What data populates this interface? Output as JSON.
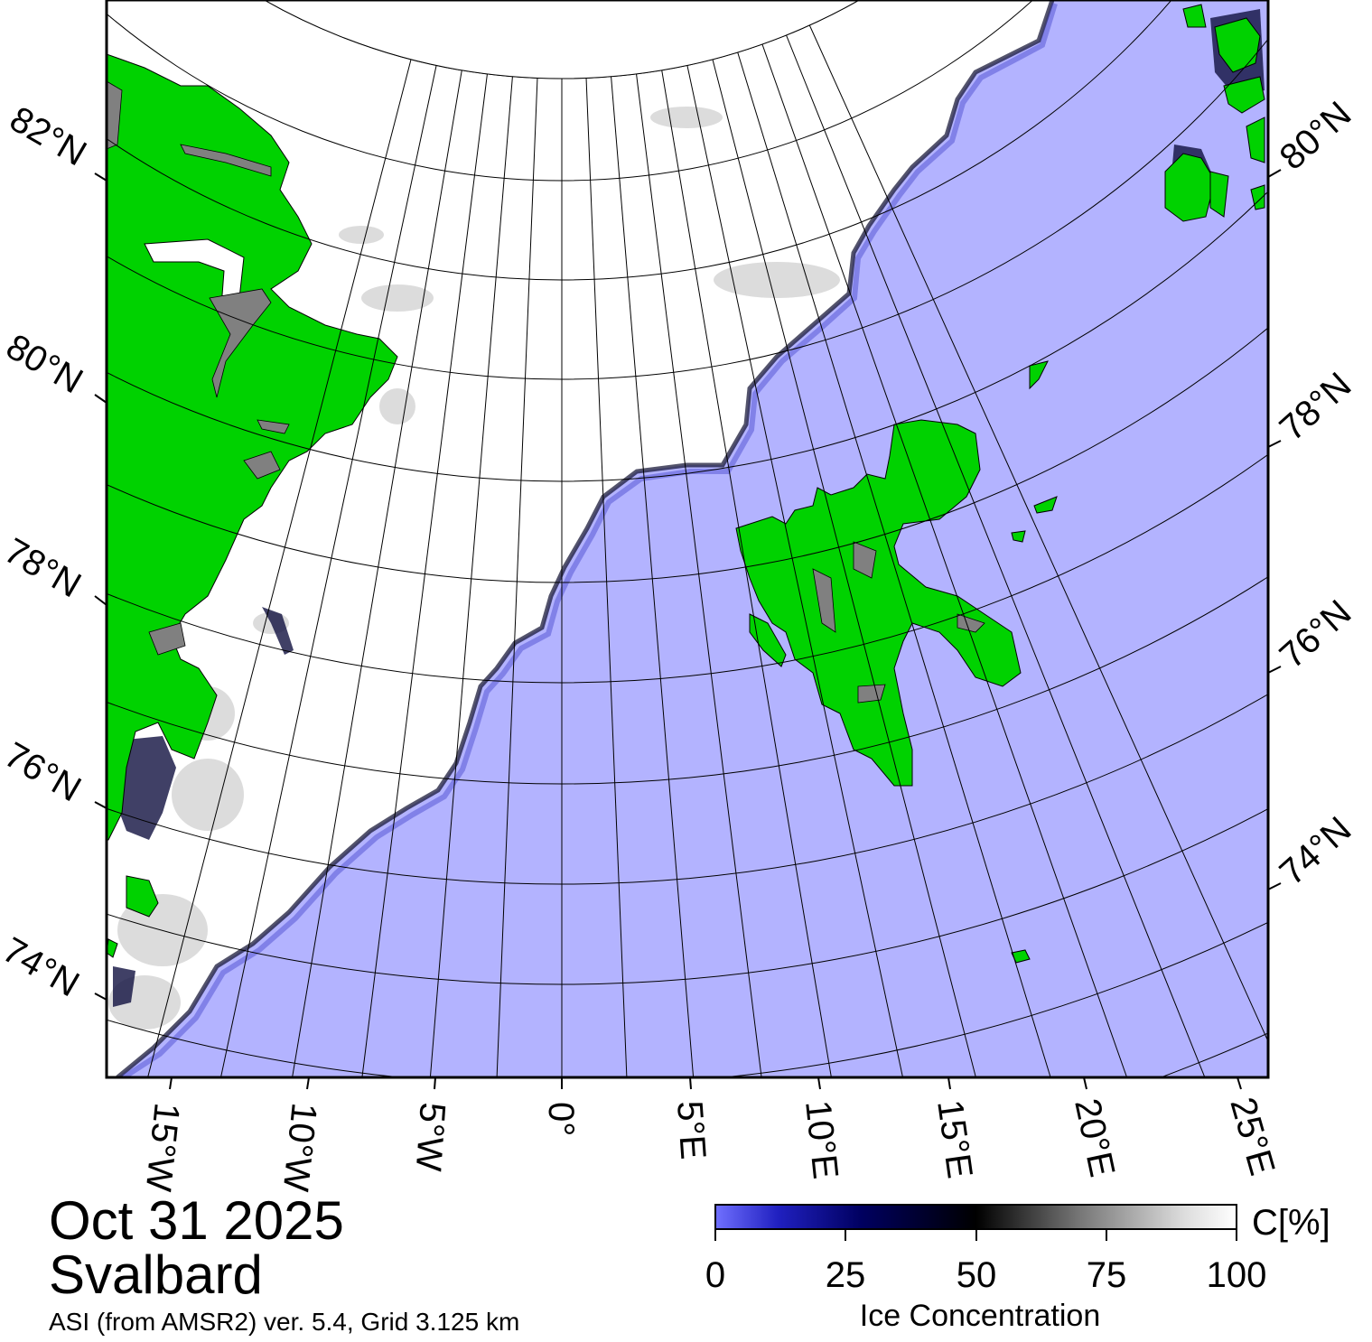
{
  "map": {
    "date": "Oct 31 2025",
    "region": "Svalbard",
    "source": "ASI (from AMSR2) ver. 5.4,  Grid 3.125 km",
    "colors": {
      "land": "#00d200",
      "open_water": "#b3b3ff",
      "high_ice": "#ffffff",
      "ice_edge": "#000000",
      "grid": "#000000"
    },
    "lat_labels_left": [
      "82°N",
      "80°N",
      "78°N",
      "76°N",
      "74°N"
    ],
    "lat_labels_right": [
      "80°N",
      "78°N",
      "76°N",
      "74°N"
    ],
    "lon_labels_bottom": [
      "15°W",
      "10°W",
      "5°W",
      "0°",
      "5°E",
      "10°E",
      "15°E",
      "20°E",
      "25°E"
    ]
  },
  "colorbar": {
    "title": "Ice Concentration",
    "unit": "C[%]",
    "ticks": [
      "0",
      "25",
      "50",
      "75",
      "100"
    ],
    "range": [
      0,
      100
    ]
  }
}
